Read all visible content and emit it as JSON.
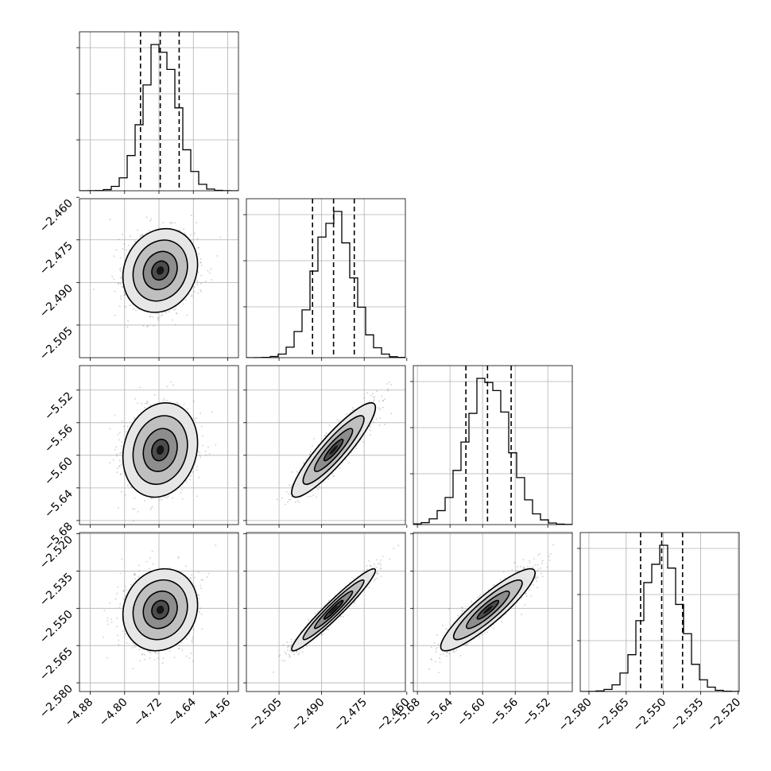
{
  "chart_data": {
    "type": "corner",
    "n_params": 4,
    "grid": true,
    "colors": {
      "ink": "#000000",
      "grid": "#b0b0b0",
      "scatter": "#8c8c8c"
    },
    "parameters": [
      {
        "ticks": [
          -4.88,
          -4.8,
          -4.72,
          -4.64,
          -4.56
        ],
        "tick_labels": [
          "−4.88",
          "−4.80",
          "−4.72",
          "−4.64",
          "−4.56"
        ],
        "range": [
          -4.905,
          -4.535
        ],
        "mean": -4.717,
        "sd": 0.0395,
        "quantiles": [
          -4.763,
          -4.717,
          -4.673
        ]
      },
      {
        "ticks": [
          -2.505,
          -2.49,
          -2.475,
          -2.46
        ],
        "tick_labels": [
          "−2.505",
          "−2.490",
          "−2.475",
          "−2.460"
        ],
        "range": [
          -2.5165,
          -2.4605
        ],
        "mean": -2.4858,
        "sd": 0.0067,
        "quantiles": [
          -2.4932,
          -2.4858,
          -2.4785
        ]
      },
      {
        "ticks": [
          -5.68,
          -5.64,
          -5.6,
          -5.56,
          -5.52
        ],
        "tick_labels": [
          "−5.68",
          "−5.64",
          "−5.60",
          "−5.56",
          "−5.52"
        ],
        "range": [
          -5.685,
          -5.49
        ],
        "mean": -5.5935,
        "sd": 0.0263,
        "quantiles": [
          -5.6205,
          -5.594,
          -5.565
        ]
      },
      {
        "ticks": [
          -2.58,
          -2.565,
          -2.55,
          -2.535,
          -2.52
        ],
        "tick_labels": [
          "−2.580",
          "−2.565",
          "−2.550",
          "−2.535",
          "−2.520"
        ],
        "range": [
          -2.5835,
          -2.5195
        ],
        "mean": -2.5506,
        "sd": 0.0075,
        "quantiles": [
          -2.5592,
          -2.5507,
          -2.5423
        ]
      }
    ],
    "correlations": [
      [
        1.0,
        0.15,
        0.15,
        0.12
      ],
      [
        0.15,
        1.0,
        0.9,
        0.96
      ],
      [
        0.15,
        0.9,
        1.0,
        0.9
      ],
      [
        0.12,
        0.96,
        0.9,
        1.0
      ]
    ]
  }
}
